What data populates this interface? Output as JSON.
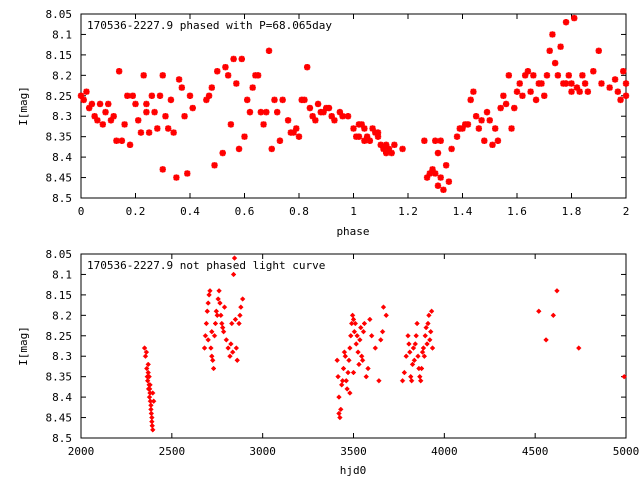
{
  "chart_data": [
    {
      "type": "scatter",
      "title": "170536-2227.9 phased with P=68.065day",
      "xlabel": "phase",
      "ylabel": "I[mag]",
      "xlim": [
        0,
        2
      ],
      "ylim": [
        8.05,
        8.5
      ],
      "y_inverted": true,
      "grid": false,
      "marker_color": "#ff0000",
      "x_ticks": [
        "0",
        "0.2",
        "0.4",
        "0.6",
        "0.8",
        "1",
        "1.2",
        "1.4",
        "1.6",
        "1.8",
        "2"
      ],
      "y_ticks": [
        "8.05",
        "8.1",
        "8.15",
        "8.2",
        "8.25",
        "8.3",
        "8.35",
        "8.4",
        "8.45",
        "8.5"
      ],
      "points": [
        [
          0.0,
          8.25
        ],
        [
          0.01,
          8.26
        ],
        [
          0.02,
          8.24
        ],
        [
          0.03,
          8.28
        ],
        [
          0.04,
          8.27
        ],
        [
          0.05,
          8.3
        ],
        [
          0.06,
          8.31
        ],
        [
          0.07,
          8.27
        ],
        [
          0.08,
          8.32
        ],
        [
          0.09,
          8.29
        ],
        [
          0.1,
          8.27
        ],
        [
          0.11,
          8.31
        ],
        [
          0.12,
          8.3
        ],
        [
          0.14,
          8.19
        ],
        [
          0.15,
          8.36
        ],
        [
          0.16,
          8.32
        ],
        [
          0.17,
          8.25
        ],
        [
          0.19,
          8.25
        ],
        [
          0.2,
          8.27
        ],
        [
          0.21,
          8.31
        ],
        [
          0.22,
          8.34
        ],
        [
          0.23,
          8.2
        ],
        [
          0.24,
          8.27
        ],
        [
          0.26,
          8.25
        ],
        [
          0.27,
          8.29
        ],
        [
          0.28,
          8.33
        ],
        [
          0.29,
          8.25
        ],
        [
          0.3,
          8.2
        ],
        [
          0.31,
          8.3
        ],
        [
          0.32,
          8.33
        ],
        [
          0.33,
          8.26
        ],
        [
          0.34,
          8.34
        ],
        [
          0.35,
          8.45
        ],
        [
          0.36,
          8.21
        ],
        [
          0.37,
          8.23
        ],
        [
          0.38,
          8.3
        ],
        [
          0.39,
          8.44
        ],
        [
          0.4,
          8.25
        ],
        [
          0.41,
          8.28
        ],
        [
          0.3,
          8.43
        ],
        [
          0.24,
          8.29
        ],
        [
          0.25,
          8.34
        ],
        [
          0.18,
          8.37
        ],
        [
          0.13,
          8.36
        ],
        [
          0.46,
          8.26
        ],
        [
          0.47,
          8.25
        ],
        [
          0.48,
          8.23
        ],
        [
          0.49,
          8.42
        ],
        [
          0.5,
          8.19
        ],
        [
          0.52,
          8.39
        ],
        [
          0.53,
          8.18
        ],
        [
          0.54,
          8.2
        ],
        [
          0.55,
          8.32
        ],
        [
          0.56,
          8.16
        ],
        [
          0.57,
          8.22
        ],
        [
          0.58,
          8.38
        ],
        [
          0.59,
          8.16
        ],
        [
          0.6,
          8.35
        ],
        [
          0.61,
          8.26
        ],
        [
          0.62,
          8.29
        ],
        [
          0.63,
          8.23
        ],
        [
          0.64,
          8.2
        ],
        [
          0.65,
          8.2
        ],
        [
          0.66,
          8.29
        ],
        [
          0.67,
          8.32
        ],
        [
          0.68,
          8.29
        ],
        [
          0.69,
          8.14
        ],
        [
          0.7,
          8.38
        ],
        [
          0.71,
          8.26
        ],
        [
          0.72,
          8.29
        ],
        [
          0.73,
          8.36
        ],
        [
          0.74,
          8.26
        ],
        [
          0.76,
          8.31
        ],
        [
          0.77,
          8.34
        ],
        [
          0.78,
          8.34
        ],
        [
          0.79,
          8.33
        ],
        [
          0.8,
          8.35
        ],
        [
          0.81,
          8.26
        ],
        [
          0.82,
          8.26
        ],
        [
          0.83,
          8.18
        ],
        [
          0.84,
          8.28
        ],
        [
          0.85,
          8.3
        ],
        [
          0.86,
          8.31
        ],
        [
          0.87,
          8.27
        ],
        [
          0.88,
          8.29
        ],
        [
          0.89,
          8.29
        ],
        [
          0.9,
          8.28
        ],
        [
          0.91,
          8.28
        ],
        [
          0.92,
          8.3
        ],
        [
          0.93,
          8.31
        ],
        [
          0.95,
          8.29
        ],
        [
          0.96,
          8.3
        ],
        [
          0.98,
          8.3
        ],
        [
          1.0,
          8.33
        ],
        [
          1.01,
          8.35
        ],
        [
          1.02,
          8.35
        ],
        [
          1.03,
          8.32
        ],
        [
          1.04,
          8.33
        ],
        [
          1.05,
          8.35
        ],
        [
          1.06,
          8.36
        ],
        [
          1.07,
          8.33
        ],
        [
          1.08,
          8.34
        ],
        [
          1.09,
          8.35
        ],
        [
          1.1,
          8.37
        ],
        [
          1.11,
          8.38
        ],
        [
          1.12,
          8.39
        ],
        [
          1.13,
          8.38
        ],
        [
          1.14,
          8.39
        ],
        [
          1.15,
          8.37
        ],
        [
          1.18,
          8.38
        ],
        [
          1.02,
          8.32
        ],
        [
          1.04,
          8.36
        ],
        [
          1.09,
          8.34
        ],
        [
          1.12,
          8.37
        ],
        [
          1.26,
          8.36
        ],
        [
          1.27,
          8.45
        ],
        [
          1.28,
          8.44
        ],
        [
          1.29,
          8.43
        ],
        [
          1.3,
          8.44
        ],
        [
          1.31,
          8.47
        ],
        [
          1.32,
          8.45
        ],
        [
          1.33,
          8.48
        ],
        [
          1.34,
          8.42
        ],
        [
          1.35,
          8.46
        ],
        [
          1.36,
          8.38
        ],
        [
          1.3,
          8.36
        ],
        [
          1.32,
          8.36
        ],
        [
          1.31,
          8.39
        ],
        [
          1.38,
          8.35
        ],
        [
          1.39,
          8.33
        ],
        [
          1.4,
          8.33
        ],
        [
          1.41,
          8.32
        ],
        [
          1.42,
          8.32
        ],
        [
          1.43,
          8.26
        ],
        [
          1.44,
          8.24
        ],
        [
          1.45,
          8.3
        ],
        [
          1.46,
          8.33
        ],
        [
          1.47,
          8.31
        ],
        [
          1.48,
          8.36
        ],
        [
          1.49,
          8.29
        ],
        [
          1.5,
          8.31
        ],
        [
          1.51,
          8.37
        ],
        [
          1.52,
          8.33
        ],
        [
          1.53,
          8.36
        ],
        [
          1.54,
          8.28
        ],
        [
          1.55,
          8.25
        ],
        [
          1.56,
          8.27
        ],
        [
          1.57,
          8.2
        ],
        [
          1.58,
          8.33
        ],
        [
          1.59,
          8.28
        ],
        [
          1.6,
          8.24
        ],
        [
          1.61,
          8.22
        ],
        [
          1.62,
          8.25
        ],
        [
          1.63,
          8.2
        ],
        [
          1.64,
          8.19
        ],
        [
          1.65,
          8.24
        ],
        [
          1.66,
          8.2
        ],
        [
          1.67,
          8.26
        ],
        [
          1.68,
          8.22
        ],
        [
          1.69,
          8.22
        ],
        [
          1.7,
          8.25
        ],
        [
          1.71,
          8.2
        ],
        [
          1.72,
          8.14
        ],
        [
          1.73,
          8.1
        ],
        [
          1.74,
          8.17
        ],
        [
          1.75,
          8.2
        ],
        [
          1.76,
          8.13
        ],
        [
          1.77,
          8.22
        ],
        [
          1.78,
          8.07
        ],
        [
          1.79,
          8.2
        ],
        [
          1.8,
          8.22
        ],
        [
          1.81,
          8.06
        ],
        [
          1.82,
          8.23
        ],
        [
          1.83,
          8.24
        ],
        [
          1.84,
          8.2
        ],
        [
          1.85,
          8.22
        ],
        [
          1.86,
          8.24
        ],
        [
          1.88,
          8.19
        ],
        [
          1.9,
          8.14
        ],
        [
          1.91,
          8.22
        ],
        [
          1.94,
          8.23
        ],
        [
          1.96,
          8.21
        ],
        [
          1.97,
          8.24
        ],
        [
          1.98,
          8.26
        ],
        [
          1.99,
          8.19
        ],
        [
          2.0,
          8.22
        ],
        [
          2.0,
          8.25
        ],
        [
          1.78,
          8.22
        ],
        [
          1.8,
          8.24
        ]
      ]
    },
    {
      "type": "scatter",
      "title": "170536-2227.9 not phased light curve",
      "xlabel": "hjd0",
      "ylabel": "I[mag]",
      "xlim": [
        2000,
        5000
      ],
      "ylim": [
        8.05,
        8.5
      ],
      "y_inverted": true,
      "grid": false,
      "marker_color": "#ff0000",
      "x_ticks": [
        "2000",
        "2500",
        "3000",
        "3500",
        "4000",
        "4500",
        "5000"
      ],
      "y_ticks": [
        "8.05",
        "8.1",
        "8.15",
        "8.2",
        "8.25",
        "8.3",
        "8.35",
        "8.4",
        "8.45",
        "8.5"
      ],
      "points": [
        [
          2350,
          8.28
        ],
        [
          2355,
          8.3
        ],
        [
          2360,
          8.29
        ],
        [
          2362,
          8.33
        ],
        [
          2365,
          8.35
        ],
        [
          2367,
          8.36
        ],
        [
          2370,
          8.34
        ],
        [
          2372,
          8.38
        ],
        [
          2375,
          8.37
        ],
        [
          2377,
          8.4
        ],
        [
          2380,
          8.39
        ],
        [
          2382,
          8.41
        ],
        [
          2385,
          8.43
        ],
        [
          2387,
          8.44
        ],
        [
          2390,
          8.46
        ],
        [
          2392,
          8.47
        ],
        [
          2395,
          8.48
        ],
        [
          2370,
          8.32
        ],
        [
          2375,
          8.35
        ],
        [
          2380,
          8.37
        ],
        [
          2385,
          8.42
        ],
        [
          2390,
          8.45
        ],
        [
          2395,
          8.39
        ],
        [
          2400,
          8.41
        ],
        [
          2378,
          8.38
        ],
        [
          2680,
          8.28
        ],
        [
          2685,
          8.25
        ],
        [
          2690,
          8.22
        ],
        [
          2695,
          8.19
        ],
        [
          2700,
          8.17
        ],
        [
          2705,
          8.15
        ],
        [
          2710,
          8.14
        ],
        [
          2715,
          8.28
        ],
        [
          2720,
          8.3
        ],
        [
          2725,
          8.31
        ],
        [
          2730,
          8.33
        ],
        [
          2735,
          8.25
        ],
        [
          2740,
          8.22
        ],
        [
          2745,
          8.19
        ],
        [
          2750,
          8.2
        ],
        [
          2755,
          8.16
        ],
        [
          2760,
          8.14
        ],
        [
          2765,
          8.17
        ],
        [
          2770,
          8.2
        ],
        [
          2775,
          8.22
        ],
        [
          2780,
          8.23
        ],
        [
          2785,
          8.24
        ],
        [
          2790,
          8.18
        ],
        [
          2800,
          8.26
        ],
        [
          2810,
          8.28
        ],
        [
          2820,
          8.3
        ],
        [
          2825,
          8.27
        ],
        [
          2830,
          8.22
        ],
        [
          2835,
          8.29
        ],
        [
          2840,
          8.1
        ],
        [
          2845,
          8.06
        ],
        [
          2850,
          8.21
        ],
        [
          2855,
          8.28
        ],
        [
          2860,
          8.31
        ],
        [
          2870,
          8.22
        ],
        [
          2875,
          8.2
        ],
        [
          2880,
          8.18
        ],
        [
          2890,
          8.16
        ],
        [
          2700,
          8.26
        ],
        [
          2720,
          8.24
        ],
        [
          3410,
          8.31
        ],
        [
          3415,
          8.35
        ],
        [
          3420,
          8.4
        ],
        [
          3425,
          8.45
        ],
        [
          3430,
          8.43
        ],
        [
          3435,
          8.37
        ],
        [
          3440,
          8.36
        ],
        [
          3445,
          8.33
        ],
        [
          3450,
          8.29
        ],
        [
          3455,
          8.3
        ],
        [
          3460,
          8.36
        ],
        [
          3465,
          8.38
        ],
        [
          3470,
          8.34
        ],
        [
          3475,
          8.31
        ],
        [
          3480,
          8.28
        ],
        [
          3485,
          8.25
        ],
        [
          3490,
          8.22
        ],
        [
          3495,
          8.2
        ],
        [
          3500,
          8.21
        ],
        [
          3505,
          8.24
        ],
        [
          3510,
          8.22
        ],
        [
          3515,
          8.27
        ],
        [
          3520,
          8.25
        ],
        [
          3525,
          8.29
        ],
        [
          3530,
          8.32
        ],
        [
          3535,
          8.26
        ],
        [
          3540,
          8.23
        ],
        [
          3545,
          8.3
        ],
        [
          3550,
          8.31
        ],
        [
          3555,
          8.24
        ],
        [
          3560,
          8.22
        ],
        [
          3570,
          8.35
        ],
        [
          3580,
          8.33
        ],
        [
          3590,
          8.21
        ],
        [
          3600,
          8.25
        ],
        [
          3620,
          8.28
        ],
        [
          3640,
          8.36
        ],
        [
          3650,
          8.26
        ],
        [
          3660,
          8.24
        ],
        [
          3665,
          8.18
        ],
        [
          3680,
          8.2
        ],
        [
          3500,
          8.34
        ],
        [
          3480,
          8.39
        ],
        [
          3420,
          8.44
        ],
        [
          3770,
          8.36
        ],
        [
          3780,
          8.34
        ],
        [
          3790,
          8.3
        ],
        [
          3800,
          8.25
        ],
        [
          3805,
          8.27
        ],
        [
          3810,
          8.29
        ],
        [
          3815,
          8.35
        ],
        [
          3820,
          8.36
        ],
        [
          3825,
          8.32
        ],
        [
          3830,
          8.28
        ],
        [
          3835,
          8.31
        ],
        [
          3840,
          8.27
        ],
        [
          3845,
          8.25
        ],
        [
          3850,
          8.22
        ],
        [
          3855,
          8.3
        ],
        [
          3860,
          8.33
        ],
        [
          3865,
          8.35
        ],
        [
          3870,
          8.36
        ],
        [
          3875,
          8.33
        ],
        [
          3880,
          8.29
        ],
        [
          3885,
          8.28
        ],
        [
          3890,
          8.3
        ],
        [
          3895,
          8.25
        ],
        [
          3900,
          8.23
        ],
        [
          3905,
          8.27
        ],
        [
          3910,
          8.22
        ],
        [
          3915,
          8.2
        ],
        [
          3920,
          8.26
        ],
        [
          3925,
          8.24
        ],
        [
          3930,
          8.19
        ],
        [
          3935,
          8.28
        ],
        [
          4520,
          8.19
        ],
        [
          4560,
          8.26
        ],
        [
          4600,
          8.2
        ],
        [
          4620,
          8.14
        ],
        [
          4740,
          8.28
        ],
        [
          4990,
          8.35
        ]
      ]
    }
  ]
}
